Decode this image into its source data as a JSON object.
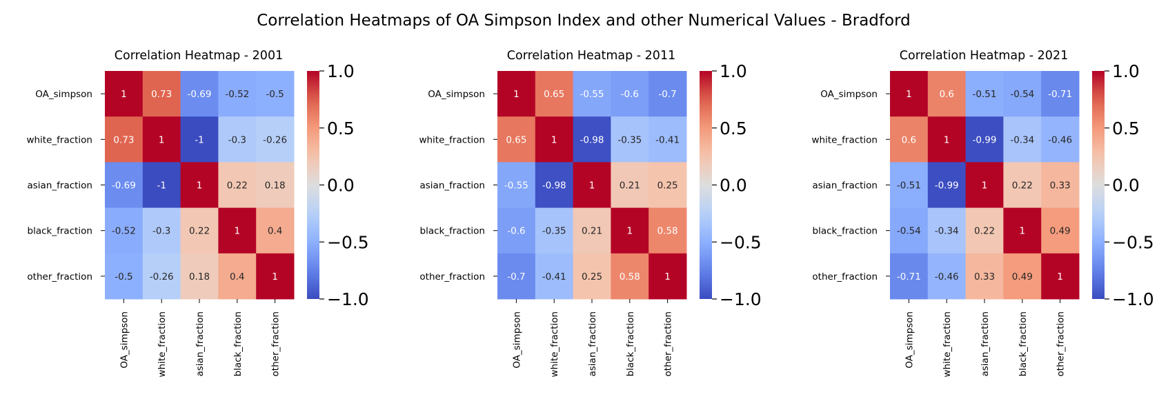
{
  "figure": {
    "title": "Correlation Heatmaps of OA Simpson Index and other Numerical Values - Bradford"
  },
  "chart_data": [
    {
      "type": "heatmap",
      "title": "Correlation Heatmap - 2001",
      "labels": [
        "OA_simpson",
        "white_fraction",
        "asian_fraction",
        "black_fraction",
        "other_fraction"
      ],
      "values": [
        [
          1,
          0.73,
          -0.69,
          -0.52,
          -0.5
        ],
        [
          0.73,
          1,
          -1,
          -0.3,
          -0.26
        ],
        [
          -0.69,
          -1,
          1,
          0.22,
          0.18
        ],
        [
          -0.52,
          -0.3,
          0.22,
          1,
          0.4
        ],
        [
          -0.5,
          -0.26,
          0.18,
          0.4,
          1
        ]
      ],
      "value_labels": [
        [
          "1",
          "0.73",
          "-0.69",
          "-0.52",
          "-0.5"
        ],
        [
          "0.73",
          "1",
          "-1",
          "-0.3",
          "-0.26"
        ],
        [
          "-0.69",
          "-1",
          "1",
          "0.22",
          "0.18"
        ],
        [
          "-0.52",
          "-0.3",
          "0.22",
          "1",
          "0.4"
        ],
        [
          "-0.5",
          "-0.26",
          "0.18",
          "0.4",
          "1"
        ]
      ],
      "colormap": "coolwarm",
      "vmin": -1,
      "vmax": 1,
      "colorbar_ticks": [
        1.0,
        0.5,
        0.0,
        -0.5,
        -1.0
      ],
      "colorbar_tick_labels": [
        "1.0",
        "0.5",
        "0.0",
        "−0.5",
        "−1.0"
      ]
    },
    {
      "type": "heatmap",
      "title": "Correlation Heatmap - 2011",
      "labels": [
        "OA_simpson",
        "white_fraction",
        "asian_fraction",
        "black_fraction",
        "other_fraction"
      ],
      "values": [
        [
          1,
          0.65,
          -0.55,
          -0.6,
          -0.7
        ],
        [
          0.65,
          1,
          -0.98,
          -0.35,
          -0.41
        ],
        [
          -0.55,
          -0.98,
          1,
          0.21,
          0.25
        ],
        [
          -0.6,
          -0.35,
          0.21,
          1,
          0.58
        ],
        [
          -0.7,
          -0.41,
          0.25,
          0.58,
          1
        ]
      ],
      "value_labels": [
        [
          "1",
          "0.65",
          "-0.55",
          "-0.6",
          "-0.7"
        ],
        [
          "0.65",
          "1",
          "-0.98",
          "-0.35",
          "-0.41"
        ],
        [
          "-0.55",
          "-0.98",
          "1",
          "0.21",
          "0.25"
        ],
        [
          "-0.6",
          "-0.35",
          "0.21",
          "1",
          "0.58"
        ],
        [
          "-0.7",
          "-0.41",
          "0.25",
          "0.58",
          "1"
        ]
      ],
      "colormap": "coolwarm",
      "vmin": -1,
      "vmax": 1,
      "colorbar_ticks": [
        1.0,
        0.5,
        0.0,
        -0.5,
        -1.0
      ],
      "colorbar_tick_labels": [
        "1.0",
        "0.5",
        "0.0",
        "−0.5",
        "−1.0"
      ]
    },
    {
      "type": "heatmap",
      "title": "Correlation Heatmap - 2021",
      "labels": [
        "OA_simpson",
        "white_fraction",
        "asian_fraction",
        "black_fraction",
        "other_fraction"
      ],
      "values": [
        [
          1,
          0.6,
          -0.51,
          -0.54,
          -0.71
        ],
        [
          0.6,
          1,
          -0.99,
          -0.34,
          -0.46
        ],
        [
          -0.51,
          -0.99,
          1,
          0.22,
          0.33
        ],
        [
          -0.54,
          -0.34,
          0.22,
          1,
          0.49
        ],
        [
          -0.71,
          -0.46,
          0.33,
          0.49,
          1
        ]
      ],
      "value_labels": [
        [
          "1",
          "0.6",
          "-0.51",
          "-0.54",
          "-0.71"
        ],
        [
          "0.6",
          "1",
          "-0.99",
          "-0.34",
          "-0.46"
        ],
        [
          "-0.51",
          "-0.99",
          "1",
          "0.22",
          "0.33"
        ],
        [
          "-0.54",
          "-0.34",
          "0.22",
          "1",
          "0.49"
        ],
        [
          "-0.71",
          "-0.46",
          "0.33",
          "0.49",
          "1"
        ]
      ],
      "colormap": "coolwarm",
      "vmin": -1,
      "vmax": 1,
      "colorbar_ticks": [
        1.0,
        0.5,
        0.0,
        -0.5,
        -1.0
      ],
      "colorbar_tick_labels": [
        "1.0",
        "0.5",
        "0.0",
        "−0.5",
        "−1.0"
      ]
    }
  ]
}
